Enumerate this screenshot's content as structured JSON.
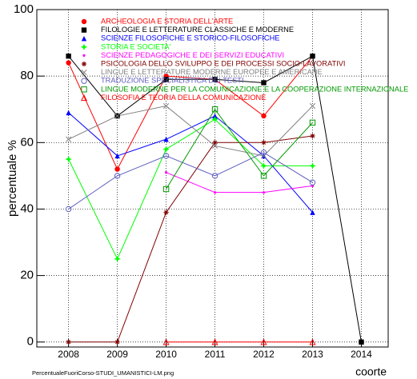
{
  "chart_data": {
    "type": "line",
    "y_label": "percentuale %",
    "x_label": "coorte",
    "footer": "PercentualeFuoriCorso-STUDI_UMANISTICI-LM.png",
    "x": [
      2008,
      2009,
      2010,
      2011,
      2012,
      2013,
      2014
    ],
    "xlim": [
      2007.35,
      2014.55
    ],
    "xticks": [
      2008,
      2009,
      2010,
      2011,
      2012,
      2013,
      2014
    ],
    "ylim": [
      -1.5,
      100
    ],
    "yticks": [
      0,
      20,
      40,
      60,
      80,
      100
    ],
    "grid": true,
    "legend": "top-left",
    "series": [
      {
        "name": "ARCHEOLOGIA E STORIA DELL'ARTE",
        "color": "#ff0000",
        "marker": "circle",
        "values": [
          84,
          52,
          80,
          79,
          68,
          86,
          null
        ]
      },
      {
        "name": "FILOLOGIE E LETTERATURE CLASSICHE E MODERNE",
        "color": "#000000",
        "marker": "square",
        "values": [
          86,
          68,
          79,
          79,
          78,
          86,
          0
        ]
      },
      {
        "name": "SCIENZE FILOSOFICHE E STORICO-FILOSOFICHE",
        "color": "#0000ff",
        "marker": "triangle",
        "values": [
          69,
          56,
          61,
          68,
          56,
          39,
          null
        ]
      },
      {
        "name": "STORIA E SOCIETA'",
        "color": "#00ff00",
        "marker": "star",
        "values": [
          55,
          25,
          58,
          67,
          53,
          53,
          null
        ]
      },
      {
        "name": "SCIENZE PEDAGOGICHE E DEI SERVIZI EDUCATIVI",
        "color": "#ff00ff",
        "marker": "dot",
        "values": [
          null,
          null,
          51,
          45,
          45,
          47,
          null
        ]
      },
      {
        "name": "PSICOLOGIA DELLO SVILUPPO E DEI PROCESSI SOCIO-LAVORATIVI",
        "color": "#800000",
        "marker": "asterisk",
        "values": [
          0,
          0,
          39,
          60,
          60,
          62,
          null
        ]
      },
      {
        "name": "LINGUE E LETTERATURE MODERNE EUROPEE E AMERICANE",
        "color": "#808080",
        "marker": "cross",
        "values": [
          61,
          68,
          71,
          59,
          56,
          71,
          null
        ]
      },
      {
        "name": "TRADUZIONE SPECIALISTICA DEI TESTI",
        "color": "#6060c0",
        "marker": "open-circle",
        "values": [
          40,
          50,
          56,
          50,
          57,
          48,
          null
        ]
      },
      {
        "name": "LINGUE MODERNE PER LA COMUNICAZIONE E LA COOPERAZIONE INTERNAZIONALE",
        "color": "#009900",
        "marker": "open-square",
        "values": [
          null,
          null,
          46,
          70,
          50,
          66,
          null
        ]
      },
      {
        "name": "FILOSOFIA E TEORIA DELLA COMUNICAZIONE",
        "color": "#ff0000",
        "marker": "open-triangle",
        "values": [
          null,
          null,
          0,
          0,
          0,
          0,
          null
        ]
      }
    ]
  }
}
